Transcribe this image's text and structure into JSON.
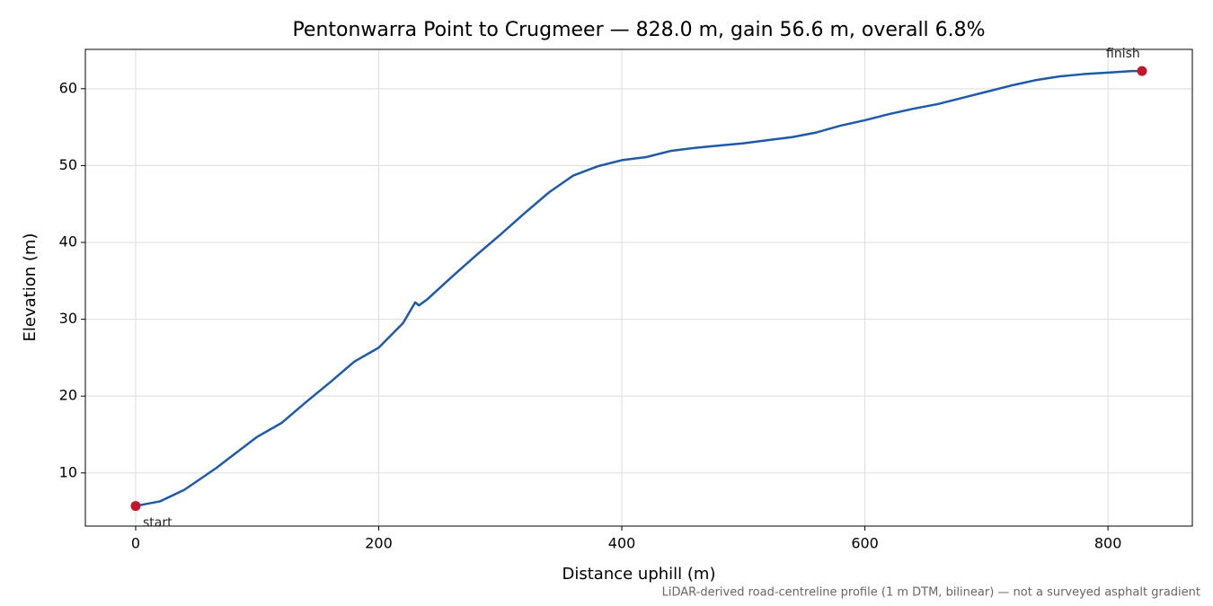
{
  "chart_data": {
    "type": "line",
    "title": "Pentonwarra Point to Crugmeer — 828.0 m, gain 56.6 m, overall 6.8%",
    "x_label": "Distance uphill (m)",
    "y_label": "Elevation (m)",
    "footnote": "LiDAR-derived road-centreline profile (1 m DTM, bilinear) — not a surveyed asphalt gradient",
    "x": [
      0,
      20,
      40,
      66,
      80,
      100,
      120,
      140,
      160,
      180,
      200,
      220,
      230,
      233,
      240,
      260,
      280,
      300,
      320,
      340,
      360,
      380,
      400,
      420,
      440,
      460,
      480,
      500,
      520,
      540,
      560,
      580,
      600,
      620,
      640,
      660,
      680,
      700,
      720,
      740,
      760,
      780,
      800,
      820,
      828
    ],
    "series": [
      {
        "name": "Elevation",
        "color": "#1f5aa8",
        "values": [
          5.7,
          6.3,
          7.8,
          10.6,
          12.3,
          14.7,
          16.5,
          19.2,
          21.8,
          24.5,
          26.3,
          29.5,
          32.2,
          31.8,
          32.6,
          35.5,
          38.3,
          41.0,
          43.8,
          46.5,
          48.7,
          49.9,
          50.7,
          51.1,
          51.9,
          52.3,
          52.6,
          52.9,
          53.3,
          53.7,
          54.3,
          55.2,
          55.9,
          56.7,
          57.4,
          58.0,
          58.8,
          59.6,
          60.4,
          61.1,
          61.6,
          61.9,
          62.1,
          62.3,
          62.3
        ]
      }
    ],
    "markers": [
      {
        "label": "start",
        "x": 0,
        "y": 5.7
      },
      {
        "label": "finish",
        "x": 828,
        "y": 62.3
      }
    ],
    "marker_color": "#c0182a",
    "xlim": [
      -41.4,
      869.4
    ],
    "ylim": [
      3.08,
      65.12
    ],
    "xticks": [
      0,
      200,
      400,
      600,
      800
    ],
    "yticks": [
      10,
      20,
      30,
      40,
      50,
      60
    ],
    "grid": true
  }
}
